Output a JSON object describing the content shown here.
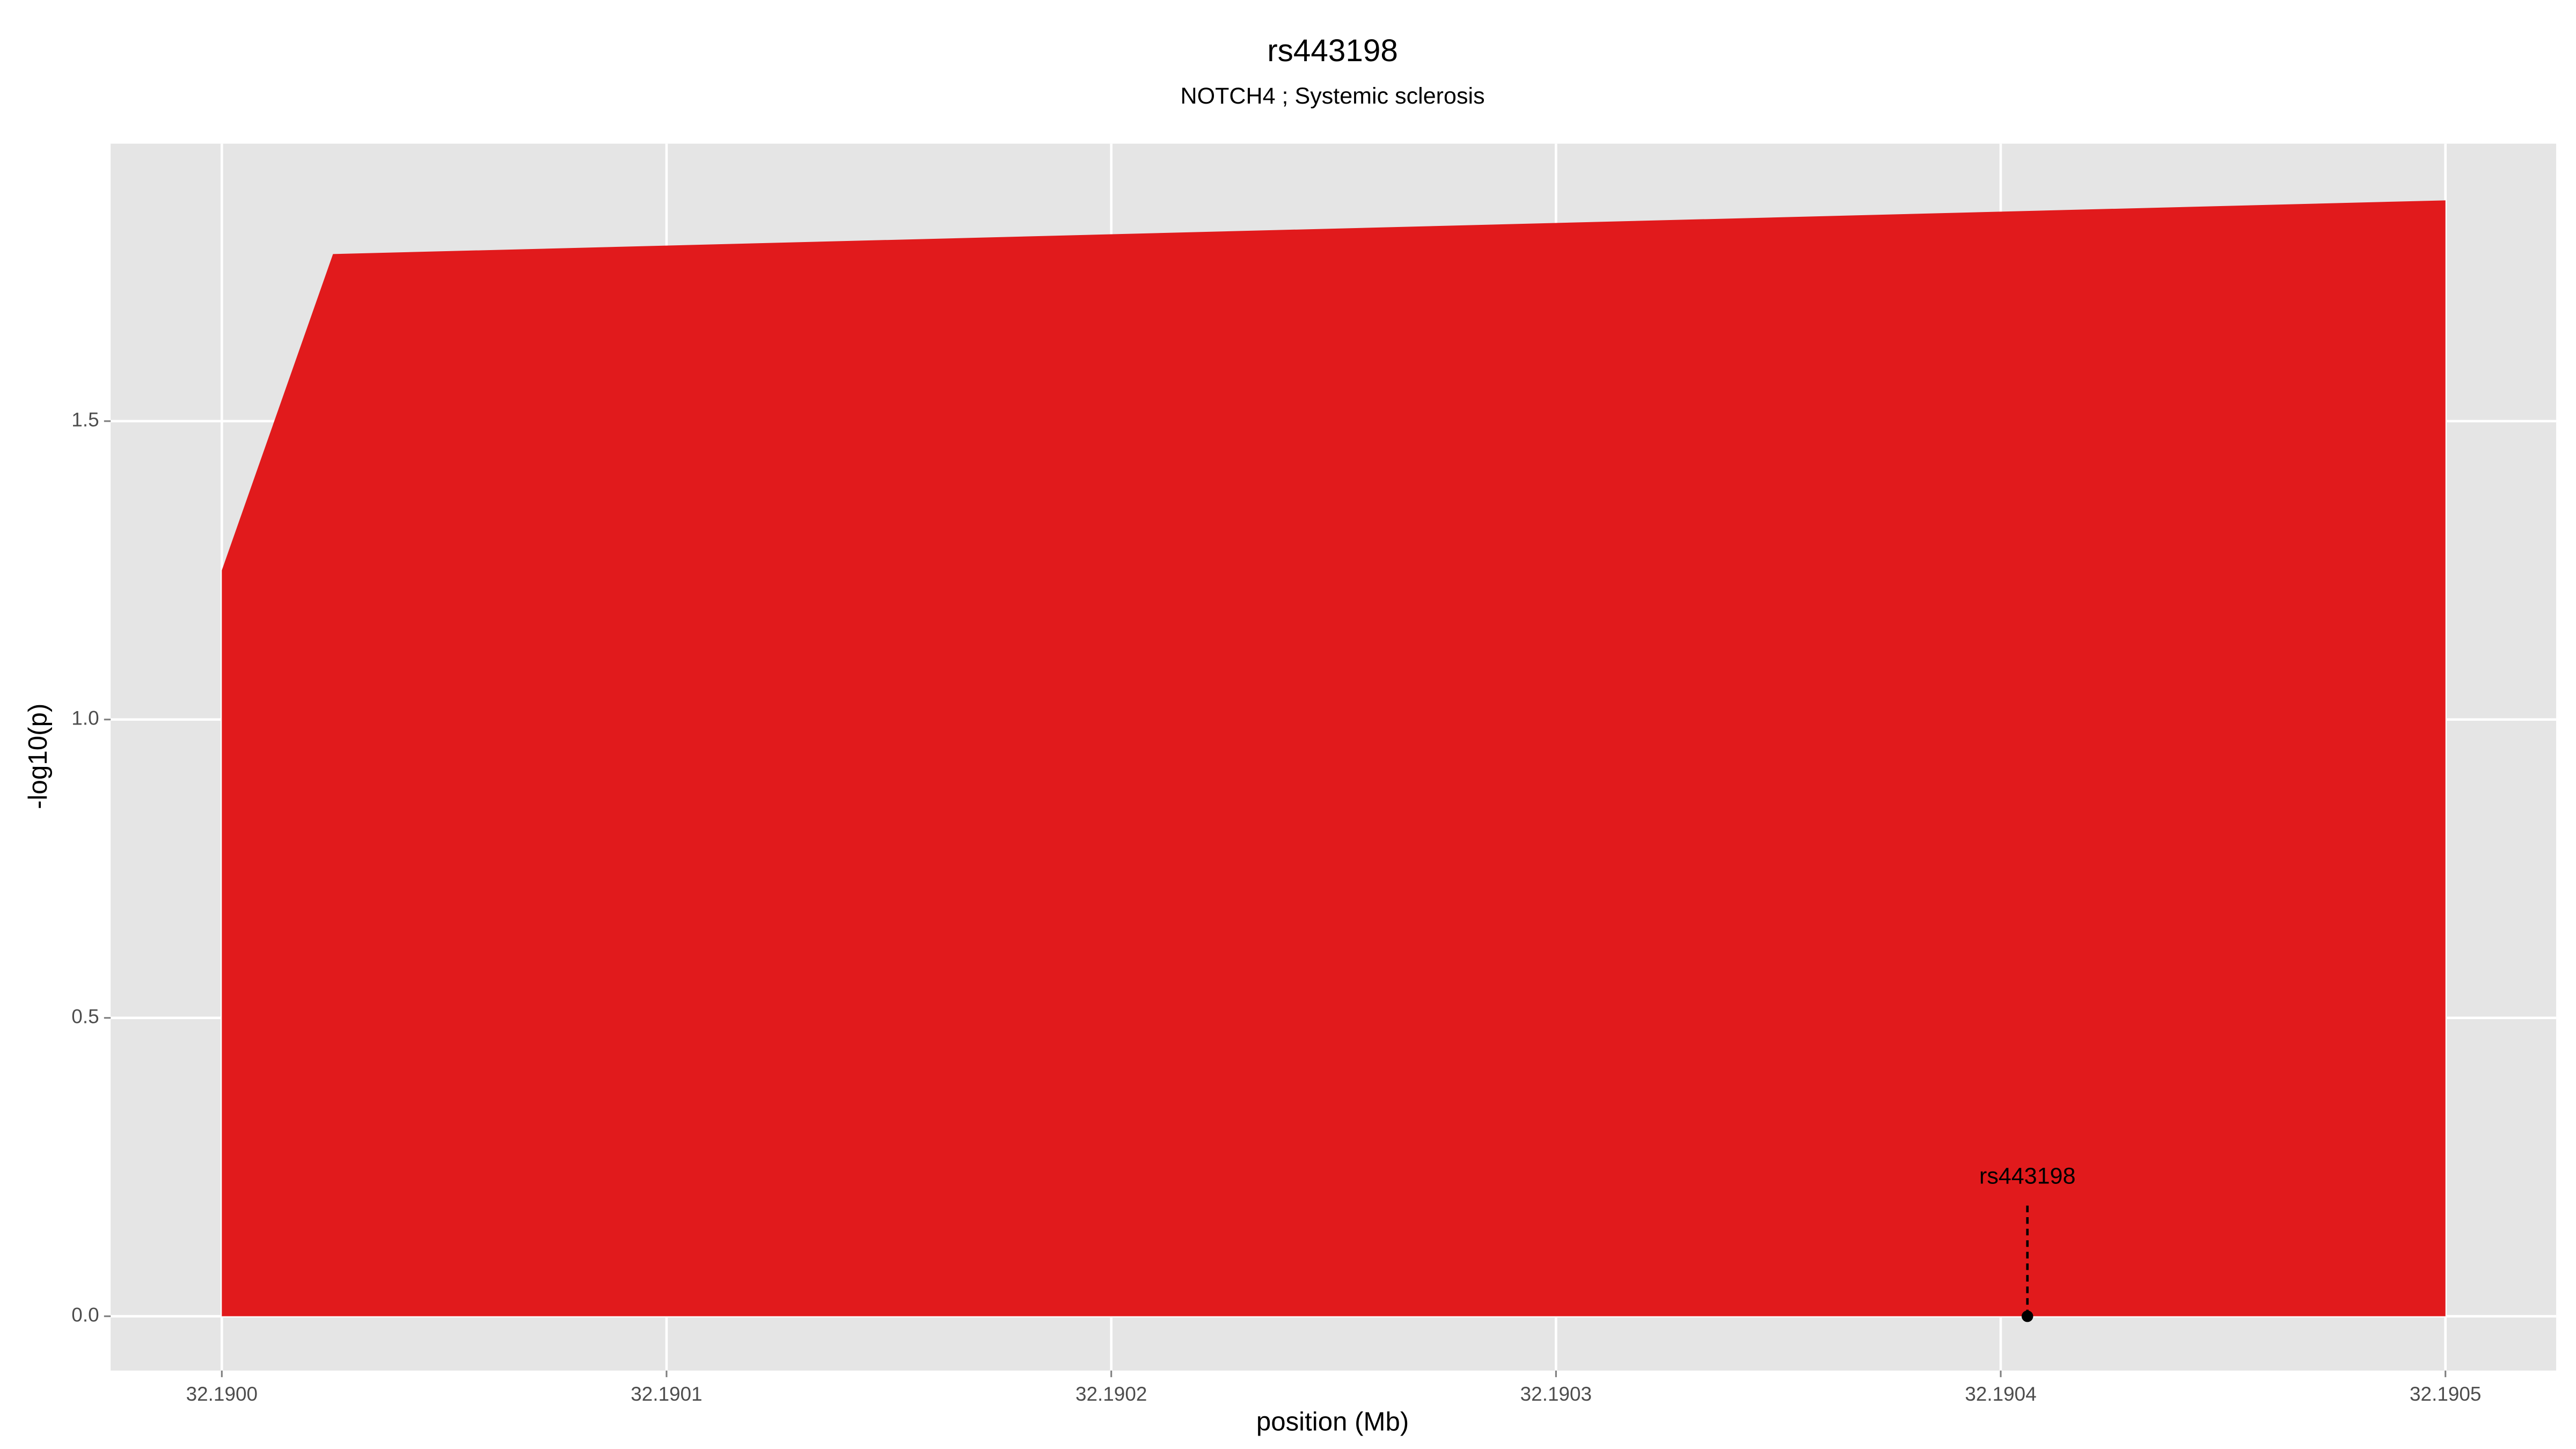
{
  "chart_data": {
    "type": "area",
    "title": "rs443198",
    "subtitle": "NOTCH4 ; Systemic sclerosis",
    "x_label": "position (Mb)",
    "y_label": "-log10(p)",
    "x": [
      32.19,
      32.190025,
      32.1905
    ],
    "values": [
      1.25,
      1.78,
      1.87
    ],
    "color": "#e11a1c",
    "xlim": [
      32.189975,
      32.1905249
    ],
    "ylim": [
      -0.091,
      1.965
    ],
    "xticks": [
      {
        "value": 32.19,
        "label": "32.1900"
      },
      {
        "value": 32.1901,
        "label": "32.1901"
      },
      {
        "value": 32.1902,
        "label": "32.1902"
      },
      {
        "value": 32.1903,
        "label": "32.1903"
      },
      {
        "value": 32.1904,
        "label": "32.1904"
      },
      {
        "value": 32.1905,
        "label": "32.1905"
      }
    ],
    "yticks": [
      {
        "value": 0,
        "label": "0.0"
      },
      {
        "value": 0.5,
        "label": "0.5"
      },
      {
        "value": 1,
        "label": "1.0"
      },
      {
        "value": 1.5,
        "label": "1.5"
      }
    ],
    "grid": true,
    "annotation": {
      "label": "rs443198",
      "x": 32.190406,
      "y": 0
    }
  }
}
